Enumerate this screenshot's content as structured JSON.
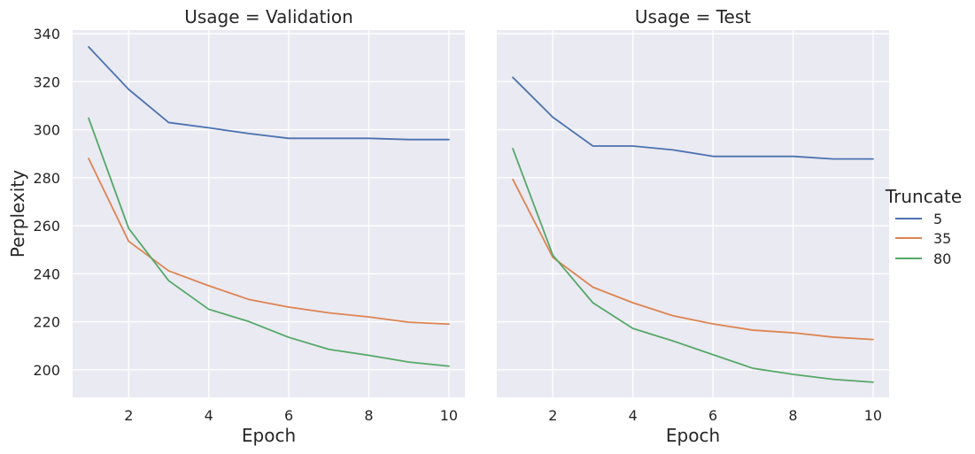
{
  "chart_data": {
    "type": "line",
    "panels": [
      {
        "title": "Usage = Validation",
        "xlabel": "Epoch",
        "ylabel": "Perplexity",
        "series": [
          {
            "name": "5",
            "x": [
              1,
              2,
              3,
              4,
              5,
              6,
              7,
              8,
              9,
              10
            ],
            "y": [
              334.5,
              316.8,
              303.0,
              300.8,
              298.4,
              296.4,
              296.4,
              296.4,
              295.9,
              295.9
            ]
          },
          {
            "name": "35",
            "x": [
              1,
              2,
              3,
              4,
              5,
              6,
              7,
              8,
              9,
              10
            ],
            "y": [
              288.0,
              253.5,
              241.2,
              235.0,
              229.3,
              226.1,
              223.7,
              222.0,
              219.8,
              219.0
            ]
          },
          {
            "name": "80",
            "x": [
              1,
              2,
              3,
              4,
              5,
              6,
              7,
              8,
              9,
              10
            ],
            "y": [
              304.8,
              258.9,
              237.1,
              225.2,
              220.1,
              213.5,
              208.5,
              206.0,
              203.2,
              201.5
            ]
          }
        ]
      },
      {
        "title": "Usage = Test",
        "xlabel": "Epoch",
        "ylabel": "",
        "series": [
          {
            "name": "5",
            "x": [
              1,
              2,
              3,
              4,
              5,
              6,
              7,
              8,
              9,
              10
            ],
            "y": [
              321.8,
              305.2,
              293.2,
              293.2,
              291.6,
              288.9,
              288.9,
              288.9,
              287.8,
              287.8
            ]
          },
          {
            "name": "35",
            "x": [
              1,
              2,
              3,
              4,
              5,
              6,
              7,
              8,
              9,
              10
            ],
            "y": [
              279.3,
              246.8,
              234.4,
              227.9,
              222.5,
              219.1,
              216.5,
              215.4,
              213.6,
              212.6
            ]
          },
          {
            "name": "80",
            "x": [
              1,
              2,
              3,
              4,
              5,
              6,
              7,
              8,
              9,
              10
            ],
            "y": [
              292.1,
              247.7,
              227.9,
              217.2,
              212.0,
              206.3,
              200.6,
              198.1,
              196.0,
              194.8
            ]
          }
        ]
      }
    ],
    "x_ticks": [
      2,
      4,
      6,
      8,
      10
    ],
    "y_ticks": [
      200,
      220,
      240,
      260,
      280,
      300,
      320,
      340
    ],
    "xlim": [
      0.6,
      10.4
    ],
    "ylim": [
      188.5,
      341.5
    ],
    "grid": true,
    "legend": {
      "title": "Truncate",
      "placement": "right",
      "entries": [
        "5",
        "35",
        "80"
      ]
    },
    "colors": {
      "5": "#4c72b0",
      "35": "#dd8452",
      "80": "#55a868",
      "panel_background": "#eaeaf2",
      "grid": "#ffffff"
    }
  }
}
